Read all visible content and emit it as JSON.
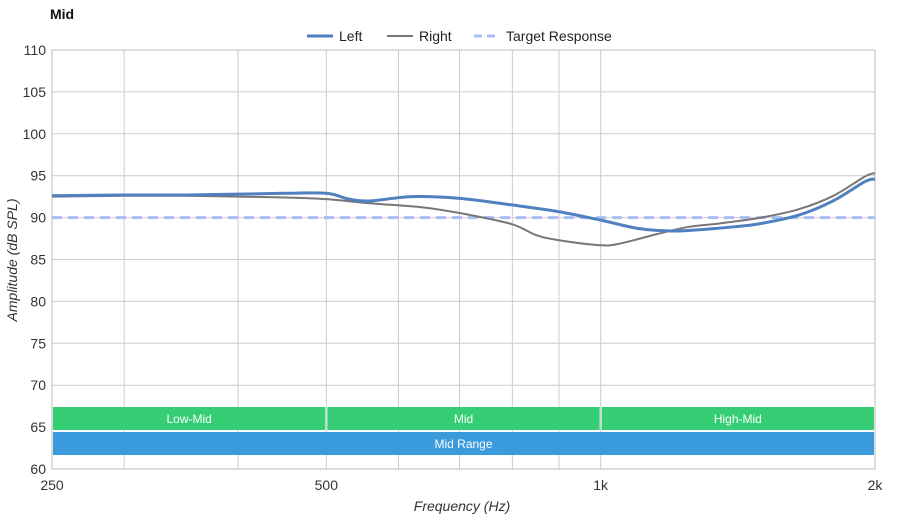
{
  "chart_data": {
    "type": "line",
    "title": "Mid",
    "xlabel": "Frequency (Hz)",
    "ylabel": "Amplitude (dB SPL)",
    "x_scale": "log",
    "xlim": [
      250,
      2000
    ],
    "ylim": [
      60,
      110
    ],
    "x_ticks": [
      {
        "value": 250,
        "label": "250"
      },
      {
        "value": 500,
        "label": "500"
      },
      {
        "value": 1000,
        "label": "1k"
      },
      {
        "value": 2000,
        "label": "2k"
      }
    ],
    "y_ticks": [
      60,
      65,
      70,
      75,
      80,
      85,
      90,
      95,
      100,
      105,
      110
    ],
    "grid": true,
    "legend_position": "top-center",
    "series": [
      {
        "name": "Left",
        "color": "#4f81c0",
        "style": "solid",
        "points": [
          [
            250,
            92.6
          ],
          [
            300,
            92.7
          ],
          [
            350,
            92.7
          ],
          [
            400,
            92.8
          ],
          [
            450,
            92.9
          ],
          [
            500,
            92.9
          ],
          [
            530,
            92.2
          ],
          [
            560,
            92.0
          ],
          [
            620,
            92.5
          ],
          [
            700,
            92.3
          ],
          [
            800,
            91.5
          ],
          [
            900,
            90.7
          ],
          [
            1000,
            89.7
          ],
          [
            1100,
            88.7
          ],
          [
            1200,
            88.4
          ],
          [
            1300,
            88.6
          ],
          [
            1400,
            88.9
          ],
          [
            1500,
            89.3
          ],
          [
            1650,
            90.3
          ],
          [
            1800,
            92.0
          ],
          [
            1950,
            94.3
          ],
          [
            2000,
            94.6
          ]
        ]
      },
      {
        "name": "Right",
        "color": "#777777",
        "style": "solid",
        "points": [
          [
            250,
            92.5
          ],
          [
            300,
            92.6
          ],
          [
            350,
            92.6
          ],
          [
            400,
            92.5
          ],
          [
            450,
            92.4
          ],
          [
            500,
            92.2
          ],
          [
            560,
            91.7
          ],
          [
            640,
            91.2
          ],
          [
            720,
            90.3
          ],
          [
            800,
            89.2
          ],
          [
            850,
            87.9
          ],
          [
            900,
            87.3
          ],
          [
            1000,
            86.7
          ],
          [
            1050,
            86.9
          ],
          [
            1150,
            88.0
          ],
          [
            1250,
            88.9
          ],
          [
            1350,
            89.3
          ],
          [
            1500,
            90.0
          ],
          [
            1650,
            91.0
          ],
          [
            1800,
            92.6
          ],
          [
            1950,
            94.9
          ],
          [
            2000,
            95.3
          ]
        ]
      },
      {
        "name": "Target Response",
        "color": "#a8bff5",
        "style": "dashed",
        "points": [
          [
            250,
            90
          ],
          [
            2000,
            90
          ]
        ]
      }
    ],
    "bands": [
      {
        "label": "Low-Mid",
        "x0": 250,
        "x1": 500,
        "row": 0,
        "color": "#2ecc71"
      },
      {
        "label": "Mid",
        "x0": 500,
        "x1": 1000,
        "row": 0,
        "color": "#2ecc71"
      },
      {
        "label": "High-Mid",
        "x0": 1000,
        "x1": 2000,
        "row": 0,
        "color": "#2ecc71"
      },
      {
        "label": "Mid Range",
        "x0": 250,
        "x1": 2000,
        "row": 1,
        "color": "#3498db"
      }
    ]
  }
}
